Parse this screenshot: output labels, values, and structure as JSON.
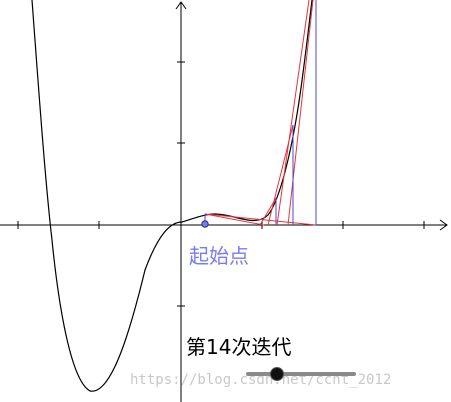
{
  "labels": {
    "start_point": "起始点",
    "iteration": "第14次迭代",
    "watermark": "https://blog.csdn.net/ccnt_2012"
  },
  "slider": {
    "iteration_value": 14
  },
  "colors": {
    "curve": "#000000",
    "axes": "#000000",
    "tangent_lines": "#e8333a",
    "vertical_lines": "#4a4ad6",
    "start_point": "#7b7bf0",
    "watermark": "#c8c8c8"
  }
}
